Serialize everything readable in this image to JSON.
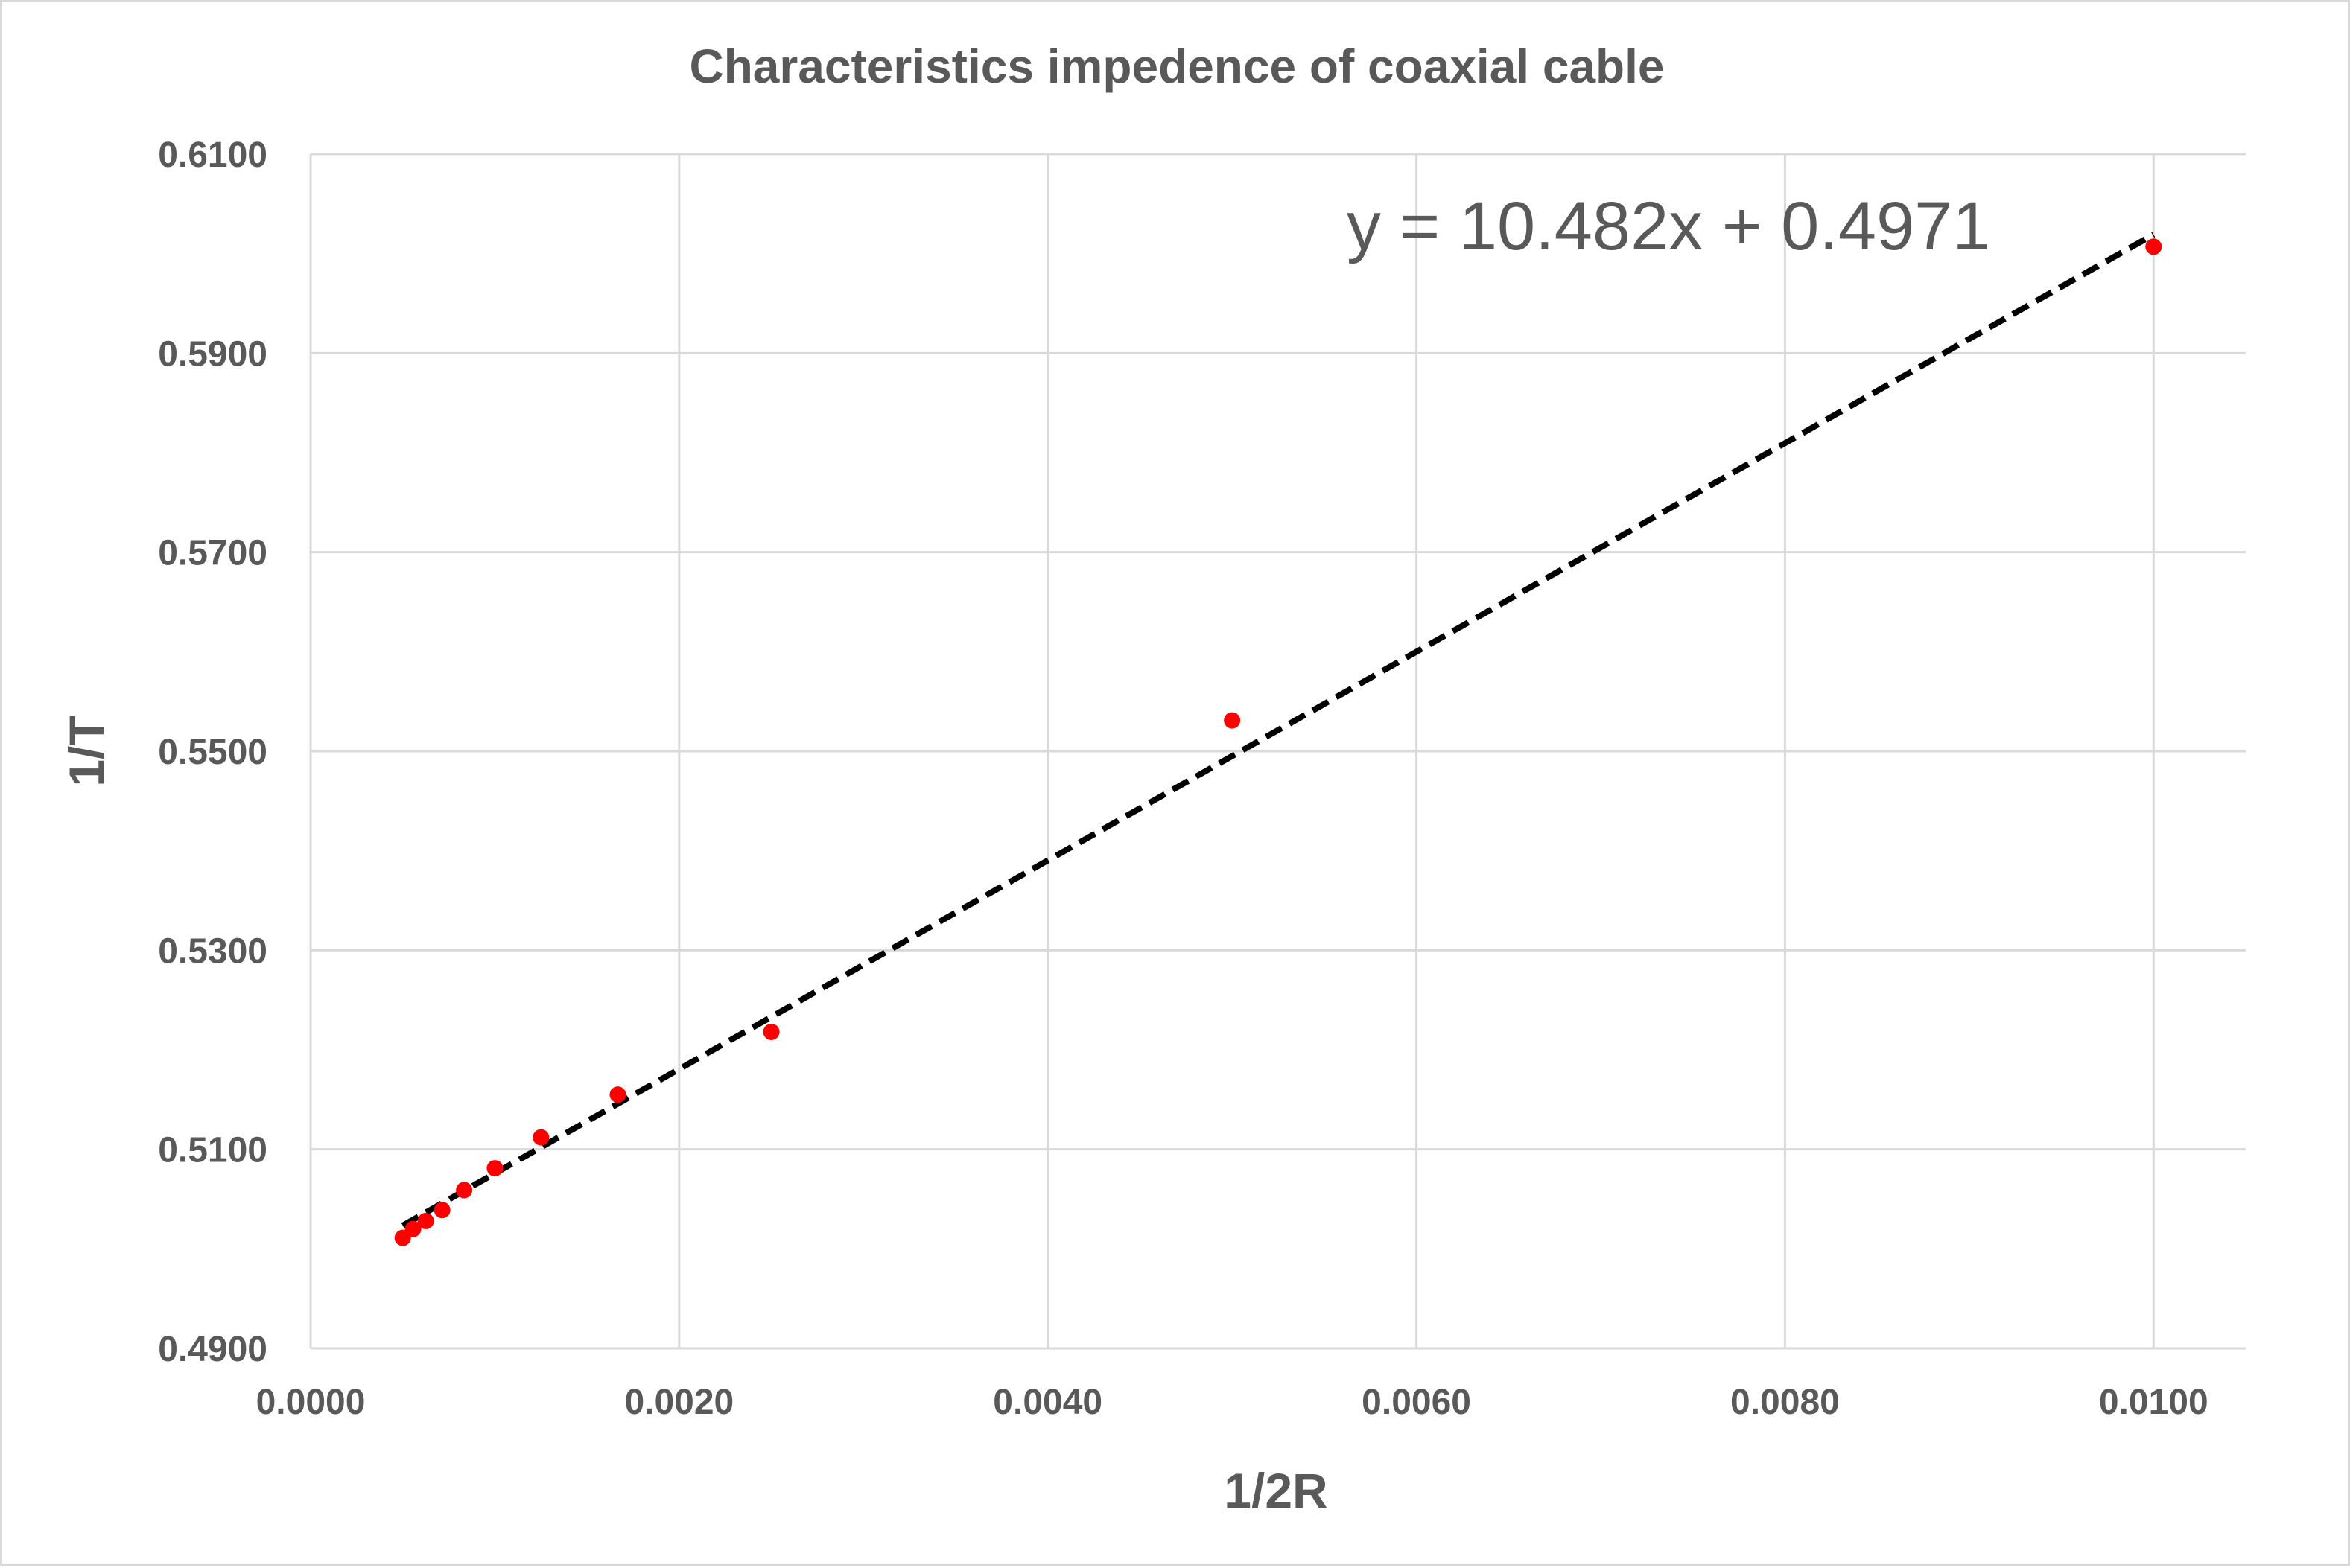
{
  "chart_data": {
    "type": "scatter",
    "title": "Characteristics impedence of coaxial cable",
    "xlabel": "1/2R",
    "ylabel": "1/T",
    "xlim": [
      0.0,
      0.0105
    ],
    "ylim": [
      0.49,
      0.61
    ],
    "x_ticks": [
      "0.0000",
      "0.0020",
      "0.0040",
      "0.0060",
      "0.0080",
      "0.0100"
    ],
    "x_tick_values": [
      0.0,
      0.002,
      0.004,
      0.006,
      0.008,
      0.01
    ],
    "y_ticks": [
      "0.4900",
      "0.5100",
      "0.5300",
      "0.5500",
      "0.5700",
      "0.5900",
      "0.6100"
    ],
    "y_tick_values": [
      0.49,
      0.51,
      0.53,
      0.55,
      0.57,
      0.59,
      0.61
    ],
    "grid": true,
    "legend": "none",
    "series": [
      {
        "marker_color": "#ff0000",
        "points": [
          {
            "x": 0.0005,
            "y": 0.5011
          },
          {
            "x": 0.000556,
            "y": 0.502
          },
          {
            "x": 0.000625,
            "y": 0.5028
          },
          {
            "x": 0.000714,
            "y": 0.5039
          },
          {
            "x": 0.000833,
            "y": 0.5059
          },
          {
            "x": 0.001,
            "y": 0.5081
          },
          {
            "x": 0.00125,
            "y": 0.5112
          },
          {
            "x": 0.001667,
            "y": 0.5155
          },
          {
            "x": 0.0025,
            "y": 0.5218
          },
          {
            "x": 0.005,
            "y": 0.5531
          },
          {
            "x": 0.01,
            "y": 0.6007
          }
        ]
      }
    ],
    "trendline": {
      "type": "linear",
      "slope": 10.482,
      "intercept": 0.4971,
      "x_range": [
        0.0005,
        0.01
      ],
      "color": "#000000",
      "style": "dashed",
      "equation_label": "y = 10.482x + 0.4971"
    },
    "colors": {
      "gridline": "#d9d9d9",
      "text": "#595959"
    }
  }
}
